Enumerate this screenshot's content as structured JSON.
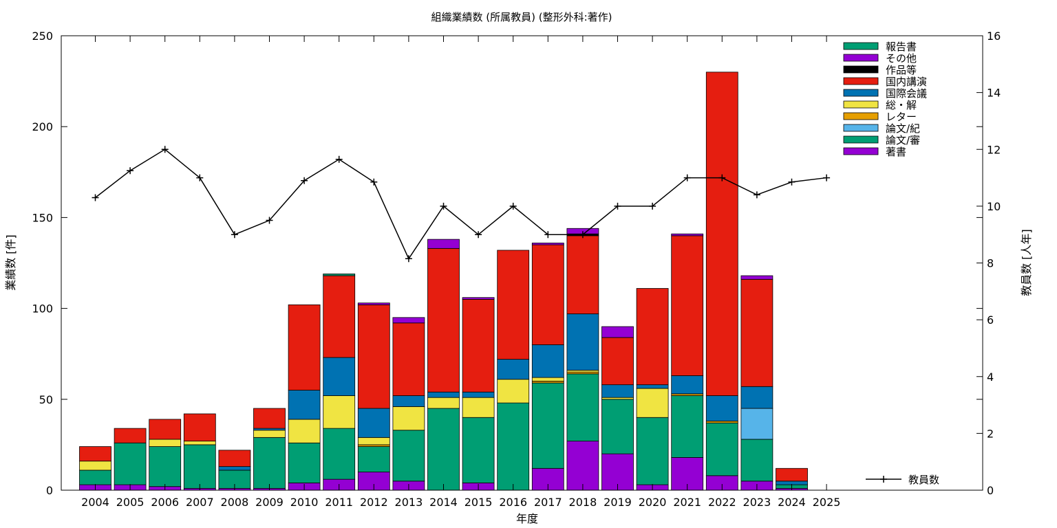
{
  "chart_data": {
    "type": "bar",
    "title": "組織業績数 (所属教員) (整形外科:著作)",
    "xlabel": "年度",
    "ylabel": "業績数 [件]",
    "y2label": "教員数 [人年]",
    "ylim": [
      0,
      250
    ],
    "y2lim": [
      0,
      16
    ],
    "yticks": [
      0,
      50,
      100,
      150,
      200,
      250
    ],
    "y2ticks": [
      0,
      2,
      4,
      6,
      8,
      10,
      12,
      14,
      16
    ],
    "grid": false,
    "legend_position": "top-right",
    "categories": [
      "2004",
      "2005",
      "2006",
      "2007",
      "2008",
      "2009",
      "2010",
      "2011",
      "2012",
      "2013",
      "2014",
      "2015",
      "2016",
      "2017",
      "2018",
      "2019",
      "2020",
      "2021",
      "2022",
      "2023",
      "2024",
      "2025"
    ],
    "series": [
      {
        "name": "著書",
        "color": "#9400d3",
        "values": [
          3,
          3,
          2,
          1,
          1,
          1,
          4,
          6,
          10,
          5,
          0,
          4,
          0,
          12,
          27,
          20,
          3,
          18,
          8,
          5,
          1,
          0
        ]
      },
      {
        "name": "論文/審",
        "color": "#009e73",
        "values": [
          8,
          23,
          22,
          24,
          10,
          28,
          22,
          28,
          14,
          28,
          45,
          36,
          48,
          47,
          37,
          30,
          37,
          34,
          29,
          23,
          2,
          0
        ]
      },
      {
        "name": "論文/紀",
        "color": "#56b4e9",
        "values": [
          0,
          0,
          0,
          0,
          0,
          0,
          0,
          0,
          0,
          0,
          0,
          0,
          0,
          0,
          0,
          0,
          0,
          0,
          0,
          17,
          0,
          0
        ]
      },
      {
        "name": "レター",
        "color": "#e69f00",
        "values": [
          0,
          0,
          0,
          0,
          0,
          0,
          0,
          0,
          1,
          0,
          0,
          0,
          0,
          1,
          1,
          0,
          0,
          1,
          1,
          0,
          0,
          0
        ]
      },
      {
        "name": "総・解",
        "color": "#f0e442",
        "values": [
          5,
          0,
          4,
          2,
          0,
          4,
          13,
          18,
          4,
          13,
          6,
          11,
          13,
          2,
          1,
          1,
          16,
          0,
          0,
          0,
          0,
          0
        ]
      },
      {
        "name": "国際会議",
        "color": "#0072b2",
        "values": [
          0,
          0,
          0,
          0,
          2,
          1,
          16,
          21,
          16,
          6,
          3,
          3,
          11,
          18,
          31,
          7,
          2,
          10,
          14,
          12,
          2,
          0
        ]
      },
      {
        "name": "国内講演",
        "color": "#e51e10",
        "values": [
          8,
          8,
          11,
          15,
          9,
          11,
          47,
          45,
          57,
          40,
          79,
          51,
          60,
          55,
          43,
          26,
          53,
          77,
          178,
          59,
          7,
          0
        ]
      },
      {
        "name": "作品等",
        "color": "#000000",
        "values": [
          0,
          0,
          0,
          0,
          0,
          0,
          0,
          0,
          0,
          0,
          0,
          0,
          0,
          0,
          1,
          0,
          0,
          0,
          0,
          0,
          0,
          0
        ]
      },
      {
        "name": "その他",
        "color": "#9400d3",
        "values": [
          0,
          0,
          0,
          0,
          0,
          0,
          0,
          0,
          1,
          3,
          5,
          1,
          0,
          1,
          3,
          6,
          0,
          1,
          0,
          2,
          0,
          0
        ]
      },
      {
        "name": "報告書",
        "color": "#009e73",
        "values": [
          0,
          0,
          0,
          0,
          0,
          0,
          0,
          1,
          0,
          0,
          0,
          0,
          0,
          0,
          0,
          0,
          0,
          0,
          0,
          0,
          0,
          0
        ]
      }
    ],
    "line_series": {
      "name": "教員数",
      "color": "#000000",
      "axis": "right",
      "values": [
        10.3,
        11.25,
        12.0,
        11.0,
        9.0,
        9.5,
        10.9,
        11.65,
        10.85,
        8.15,
        10.0,
        9.0,
        10.0,
        9.0,
        9.0,
        10.0,
        10.0,
        11.0,
        11.0,
        10.4,
        10.85,
        11.0
      ]
    }
  }
}
